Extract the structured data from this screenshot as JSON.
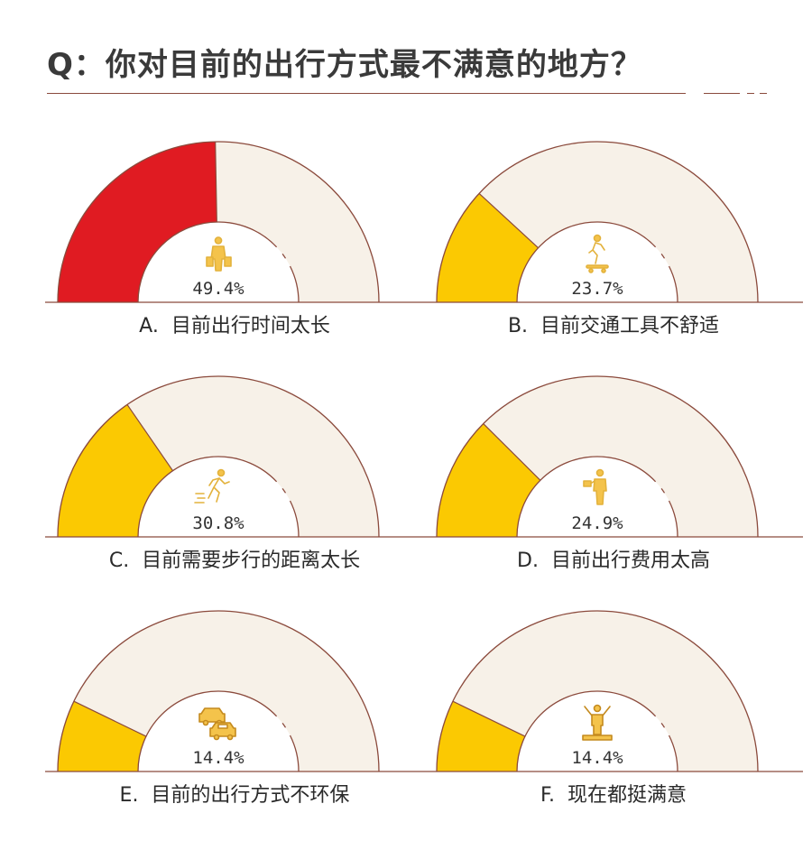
{
  "title": "Q：你对目前的出行方式最不满意的地方？",
  "colors": {
    "highlight": "#e01b22",
    "filled": "#fbc902",
    "track": "#f7f1e8",
    "outline": "#8b4a3c",
    "icon": "#f4c34b"
  },
  "chart_data": [
    {
      "type": "gauge",
      "label": "A.  目前出行时间太长",
      "value": 49.4,
      "value_label": "49.4%",
      "icon": "walker-with-bags-icon",
      "highlight": true
    },
    {
      "type": "gauge",
      "label": "B.  目前交通工具不舒适",
      "value": 23.7,
      "value_label": "23.7%",
      "icon": "skateboarder-icon",
      "highlight": false
    },
    {
      "type": "gauge",
      "label": "C.  目前需要步行的距离太长",
      "value": 30.8,
      "value_label": "30.8%",
      "icon": "runner-icon",
      "highlight": false
    },
    {
      "type": "gauge",
      "label": "D.  目前出行费用太高",
      "value": 24.9,
      "value_label": "24.9%",
      "icon": "person-paying-icon",
      "highlight": false
    },
    {
      "type": "gauge",
      "label": "E.  目前的出行方式不环保",
      "value": 14.4,
      "value_label": "14.4%",
      "icon": "two-cars-icon",
      "highlight": false
    },
    {
      "type": "gauge",
      "label": "F.  现在都挺满意",
      "value": 14.4,
      "value_label": "14.4%",
      "icon": "cheering-person-icon",
      "highlight": false
    }
  ]
}
